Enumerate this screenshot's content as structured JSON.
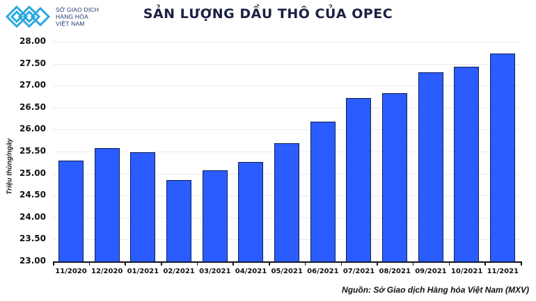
{
  "logo": {
    "line1": "SỞ GIAO DỊCH",
    "line2": "HÀNG HÓA",
    "line3": "VIỆT NAM"
  },
  "title": "SẢN LƯỢNG DẦU THÔ CỦA OPEC",
  "source": "Nguồn: Sở Giao dịch Hàng hóa Việt Nam (MXV)",
  "colors": {
    "bar": "#2b5cff",
    "bar_border": "#0f1f55",
    "title": "#1b2140"
  },
  "chart_data": {
    "type": "bar",
    "title": "SẢN LƯỢNG DẦU THÔ CỦA OPEC",
    "xlabel": "",
    "ylabel": "Triệu thùng/ngày",
    "ylim": [
      23.0,
      28.0
    ],
    "yticks": [
      "23.00",
      "23.50",
      "24.00",
      "24.50",
      "25.00",
      "25.50",
      "26.00",
      "26.50",
      "27.00",
      "27.50",
      "28.00"
    ],
    "grid": true,
    "legend": null,
    "categories": [
      "11/2020",
      "12/2020",
      "01/2021",
      "02/2021",
      "03/2021",
      "04/2021",
      "05/2021",
      "06/2021",
      "07/2021",
      "08/2021",
      "09/2021",
      "10/2021",
      "11/2021"
    ],
    "values": [
      25.3,
      25.58,
      25.49,
      24.85,
      25.07,
      25.27,
      25.69,
      26.18,
      26.72,
      26.83,
      27.31,
      27.43,
      27.73
    ]
  }
}
